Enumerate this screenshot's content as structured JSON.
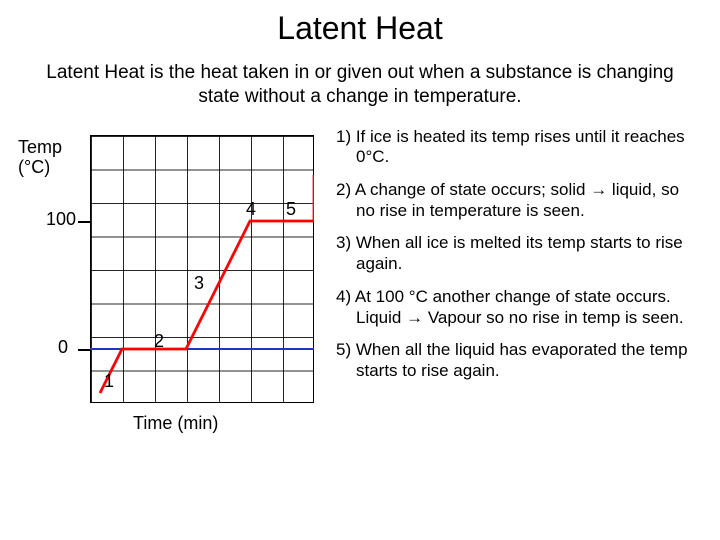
{
  "title": "Latent Heat",
  "subtitle": "Latent Heat is the heat taken in or given out when a substance is changing state without a change in temperature.",
  "chart": {
    "type": "line",
    "y_label": "Temp\n(°C)",
    "x_label": "Time (min)",
    "y_tick_100": "100",
    "y_tick_0": "0",
    "background_color": "#ffffff",
    "grid_color": "#000000",
    "curve_color": "#ff0000",
    "curve_width": 2.5,
    "axis_color": "#2233cc",
    "points_raw": [
      [
        10,
        258
      ],
      [
        32,
        214
      ],
      [
        96,
        214
      ],
      [
        160,
        86
      ],
      [
        224,
        86
      ],
      [
        224,
        40
      ]
    ],
    "phase_labels": {
      "1": "1",
      "2": "2",
      "3": "3",
      "4": "4",
      "5": "5"
    }
  },
  "notes": {
    "n1": "1) If ice is heated its temp rises until it reaches 0°C.",
    "n2": "2) A change of state occurs; solid → liquid,  so no rise in temperature is seen.",
    "n3": "3) When all ice is melted its temp starts to rise again.",
    "n4": "4) At 100 °C another change of state occurs. Liquid → Vapour so no rise in temp is seen.",
    "n5": "5) When all the liquid has evaporated the temp starts to rise again."
  }
}
